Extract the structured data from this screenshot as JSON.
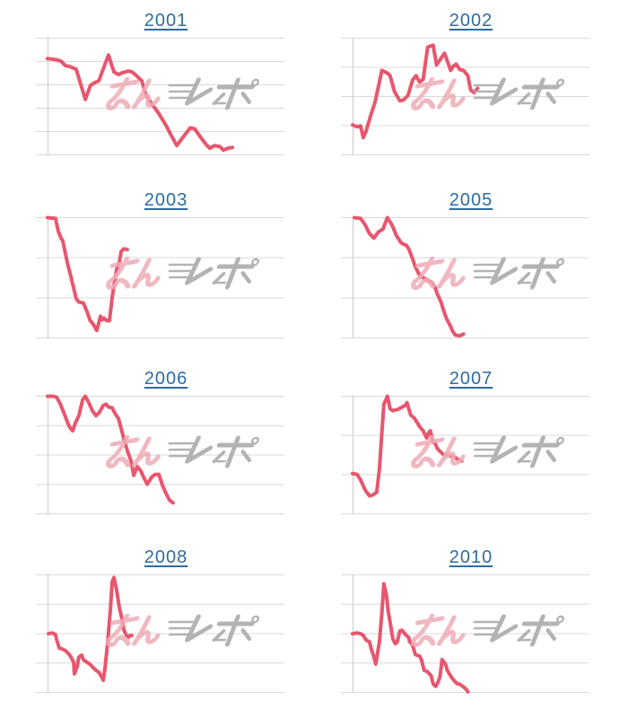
{
  "page": {
    "background": "#ffffff"
  },
  "colors": {
    "line": "#e8566e",
    "grid": "#d9d9d9",
    "axis": "#c9c9c9",
    "link": "#2d6ca2",
    "watermark_pink": "#eeacb6",
    "watermark_gray": "#ababab"
  },
  "watermark": {
    "text": "みんレポ"
  },
  "chart_data": [
    {
      "type": "line",
      "title": "2001",
      "gridline_count": 6,
      "axis_labels_visible": false,
      "value_scale": "unlabeled (normalized 0=top,1=bottom)",
      "points": [
        [
          0.047,
          0.175
        ],
        [
          0.079,
          0.183
        ],
        [
          0.101,
          0.198
        ],
        [
          0.119,
          0.236
        ],
        [
          0.137,
          0.244
        ],
        [
          0.162,
          0.267
        ],
        [
          0.199,
          0.525
        ],
        [
          0.22,
          0.404
        ],
        [
          0.238,
          0.381
        ],
        [
          0.253,
          0.366
        ],
        [
          0.292,
          0.145
        ],
        [
          0.314,
          0.289
        ],
        [
          0.332,
          0.312
        ],
        [
          0.347,
          0.297
        ],
        [
          0.372,
          0.282
        ],
        [
          0.386,
          0.289
        ],
        [
          0.404,
          0.32
        ],
        [
          0.426,
          0.366
        ],
        [
          0.444,
          0.495
        ],
        [
          0.469,
          0.571
        ],
        [
          0.495,
          0.647
        ],
        [
          0.523,
          0.746
        ],
        [
          0.542,
          0.822
        ],
        [
          0.567,
          0.921
        ],
        [
          0.588,
          0.86
        ],
        [
          0.621,
          0.769
        ],
        [
          0.639,
          0.777
        ],
        [
          0.661,
          0.845
        ],
        [
          0.686,
          0.914
        ],
        [
          0.7,
          0.944
        ],
        [
          0.718,
          0.921
        ],
        [
          0.74,
          0.929
        ],
        [
          0.754,
          0.959
        ],
        [
          0.773,
          0.944
        ],
        [
          0.791,
          0.937
        ]
      ]
    },
    {
      "type": "line",
      "title": "2002",
      "gridline_count": 5,
      "axis_labels_visible": false,
      "value_scale": "unlabeled (normalized 0=top,1=bottom)",
      "points": [
        [
          0.047,
          0.744
        ],
        [
          0.065,
          0.76
        ],
        [
          0.079,
          0.752
        ],
        [
          0.09,
          0.852
        ],
        [
          0.101,
          0.798
        ],
        [
          0.119,
          0.668
        ],
        [
          0.137,
          0.553
        ],
        [
          0.165,
          0.276
        ],
        [
          0.187,
          0.299
        ],
        [
          0.198,
          0.322
        ],
        [
          0.216,
          0.46
        ],
        [
          0.237,
          0.537
        ],
        [
          0.252,
          0.53
        ],
        [
          0.27,
          0.491
        ],
        [
          0.288,
          0.361
        ],
        [
          0.302,
          0.322
        ],
        [
          0.317,
          0.376
        ],
        [
          0.331,
          0.353
        ],
        [
          0.349,
          0.077
        ],
        [
          0.371,
          0.061
        ],
        [
          0.385,
          0.23
        ],
        [
          0.417,
          0.13
        ],
        [
          0.442,
          0.276
        ],
        [
          0.453,
          0.238
        ],
        [
          0.464,
          0.223
        ],
        [
          0.478,
          0.269
        ],
        [
          0.493,
          0.276
        ],
        [
          0.511,
          0.322
        ],
        [
          0.522,
          0.445
        ],
        [
          0.536,
          0.468
        ],
        [
          0.55,
          0.43
        ]
      ]
    },
    {
      "type": "line",
      "title": "2003",
      "gridline_count": 4,
      "axis_labels_visible": false,
      "value_scale": "unlabeled (normalized 0=top,1=bottom)",
      "points": [
        [
          0.047,
          0.0
        ],
        [
          0.079,
          0.007
        ],
        [
          0.09,
          0.111
        ],
        [
          0.101,
          0.17
        ],
        [
          0.108,
          0.192
        ],
        [
          0.126,
          0.37
        ],
        [
          0.144,
          0.517
        ],
        [
          0.162,
          0.673
        ],
        [
          0.173,
          0.702
        ],
        [
          0.191,
          0.71
        ],
        [
          0.206,
          0.783
        ],
        [
          0.217,
          0.85
        ],
        [
          0.231,
          0.887
        ],
        [
          0.245,
          0.939
        ],
        [
          0.26,
          0.82
        ],
        [
          0.267,
          0.85
        ],
        [
          0.274,
          0.835
        ],
        [
          0.285,
          0.857
        ],
        [
          0.296,
          0.857
        ],
        [
          0.307,
          0.665
        ],
        [
          0.318,
          0.517
        ],
        [
          0.325,
          0.429
        ],
        [
          0.336,
          0.37
        ],
        [
          0.343,
          0.281
        ],
        [
          0.354,
          0.259
        ],
        [
          0.368,
          0.266
        ]
      ]
    },
    {
      "type": "line",
      "title": "2005",
      "gridline_count": 4,
      "axis_labels_visible": false,
      "value_scale": "unlabeled (normalized 0=top,1=bottom)",
      "points": [
        [
          0.054,
          0.0
        ],
        [
          0.079,
          0.007
        ],
        [
          0.097,
          0.059
        ],
        [
          0.115,
          0.133
        ],
        [
          0.133,
          0.17
        ],
        [
          0.151,
          0.118
        ],
        [
          0.169,
          0.096
        ],
        [
          0.187,
          0.0
        ],
        [
          0.205,
          0.059
        ],
        [
          0.223,
          0.148
        ],
        [
          0.241,
          0.207
        ],
        [
          0.252,
          0.222
        ],
        [
          0.263,
          0.229
        ],
        [
          0.273,
          0.259
        ],
        [
          0.288,
          0.34
        ],
        [
          0.299,
          0.407
        ],
        [
          0.313,
          0.466
        ],
        [
          0.324,
          0.495
        ],
        [
          0.335,
          0.503
        ],
        [
          0.349,
          0.517
        ],
        [
          0.367,
          0.54
        ],
        [
          0.378,
          0.577
        ],
        [
          0.388,
          0.636
        ],
        [
          0.403,
          0.702
        ],
        [
          0.414,
          0.776
        ],
        [
          0.424,
          0.835
        ],
        [
          0.439,
          0.894
        ],
        [
          0.45,
          0.946
        ],
        [
          0.46,
          0.976
        ],
        [
          0.478,
          0.983
        ],
        [
          0.493,
          0.968
        ]
      ]
    },
    {
      "type": "line",
      "title": "2006",
      "gridline_count": 5,
      "axis_labels_visible": false,
      "value_scale": "unlabeled (normalized 0=top,1=bottom)",
      "points": [
        [
          0.047,
          0.0
        ],
        [
          0.069,
          0.0
        ],
        [
          0.083,
          0.008
        ],
        [
          0.097,
          0.06
        ],
        [
          0.116,
          0.159
        ],
        [
          0.134,
          0.257
        ],
        [
          0.148,
          0.295
        ],
        [
          0.159,
          0.227
        ],
        [
          0.173,
          0.166
        ],
        [
          0.188,
          0.03
        ],
        [
          0.199,
          0.0
        ],
        [
          0.213,
          0.055
        ],
        [
          0.227,
          0.121
        ],
        [
          0.242,
          0.166
        ],
        [
          0.256,
          0.136
        ],
        [
          0.271,
          0.079
        ],
        [
          0.282,
          0.068
        ],
        [
          0.292,
          0.091
        ],
        [
          0.307,
          0.098
        ],
        [
          0.318,
          0.144
        ],
        [
          0.332,
          0.189
        ],
        [
          0.343,
          0.272
        ],
        [
          0.354,
          0.363
        ],
        [
          0.368,
          0.461
        ],
        [
          0.383,
          0.552
        ],
        [
          0.394,
          0.673
        ],
        [
          0.408,
          0.597
        ],
        [
          0.422,
          0.635
        ],
        [
          0.437,
          0.703
        ],
        [
          0.448,
          0.748
        ],
        [
          0.466,
          0.688
        ],
        [
          0.48,
          0.665
        ],
        [
          0.495,
          0.665
        ],
        [
          0.509,
          0.756
        ],
        [
          0.523,
          0.824
        ],
        [
          0.538,
          0.884
        ],
        [
          0.552,
          0.907
        ]
      ]
    },
    {
      "type": "line",
      "title": "2007",
      "gridline_count": 4,
      "axis_labels_visible": false,
      "value_scale": "unlabeled (normalized 0=top,1=bottom)",
      "points": [
        [
          0.047,
          0.658
        ],
        [
          0.065,
          0.665
        ],
        [
          0.079,
          0.711
        ],
        [
          0.09,
          0.763
        ],
        [
          0.101,
          0.809
        ],
        [
          0.115,
          0.847
        ],
        [
          0.129,
          0.839
        ],
        [
          0.144,
          0.816
        ],
        [
          0.155,
          0.62
        ],
        [
          0.162,
          0.393
        ],
        [
          0.173,
          0.068
        ],
        [
          0.187,
          0.0
        ],
        [
          0.198,
          0.108
        ],
        [
          0.209,
          0.123
        ],
        [
          0.223,
          0.115
        ],
        [
          0.234,
          0.108
        ],
        [
          0.245,
          0.093
        ],
        [
          0.259,
          0.078
        ],
        [
          0.266,
          0.055
        ],
        [
          0.281,
          0.161
        ],
        [
          0.295,
          0.184
        ],
        [
          0.306,
          0.221
        ],
        [
          0.317,
          0.259
        ],
        [
          0.331,
          0.295
        ],
        [
          0.345,
          0.355
        ],
        [
          0.353,
          0.31
        ],
        [
          0.36,
          0.295
        ],
        [
          0.371,
          0.393
        ],
        [
          0.378,
          0.393
        ],
        [
          0.388,
          0.446
        ],
        [
          0.403,
          0.476
        ],
        [
          0.414,
          0.499
        ],
        [
          0.424,
          0.499
        ],
        [
          0.439,
          0.506
        ],
        [
          0.45,
          0.514
        ],
        [
          0.46,
          0.521
        ],
        [
          0.475,
          0.544
        ],
        [
          0.486,
          0.551
        ]
      ]
    },
    {
      "type": "line",
      "title": "2008",
      "gridline_count": 5,
      "axis_labels_visible": false,
      "value_scale": "unlabeled (normalized 0=top,1=bottom)",
      "points": [
        [
          0.051,
          0.501
        ],
        [
          0.065,
          0.494
        ],
        [
          0.079,
          0.509
        ],
        [
          0.083,
          0.547
        ],
        [
          0.094,
          0.623
        ],
        [
          0.105,
          0.63
        ],
        [
          0.119,
          0.645
        ],
        [
          0.134,
          0.676
        ],
        [
          0.141,
          0.699
        ],
        [
          0.152,
          0.744
        ],
        [
          0.155,
          0.843
        ],
        [
          0.166,
          0.782
        ],
        [
          0.173,
          0.699
        ],
        [
          0.184,
          0.683
        ],
        [
          0.191,
          0.721
        ],
        [
          0.206,
          0.744
        ],
        [
          0.217,
          0.759
        ],
        [
          0.227,
          0.782
        ],
        [
          0.242,
          0.812
        ],
        [
          0.253,
          0.828
        ],
        [
          0.264,
          0.866
        ],
        [
          0.271,
          0.896
        ],
        [
          0.278,
          0.797
        ],
        [
          0.289,
          0.57
        ],
        [
          0.3,
          0.289
        ],
        [
          0.307,
          0.061
        ],
        [
          0.314,
          0.023
        ],
        [
          0.325,
          0.129
        ],
        [
          0.336,
          0.281
        ],
        [
          0.347,
          0.38
        ],
        [
          0.354,
          0.471
        ],
        [
          0.365,
          0.516
        ],
        [
          0.372,
          0.532
        ],
        [
          0.379,
          0.516
        ],
        [
          0.386,
          0.516
        ]
      ]
    },
    {
      "type": "line",
      "title": "2010",
      "gridline_count": 5,
      "axis_labels_visible": false,
      "value_scale": "unlabeled (normalized 0=top,1=bottom)",
      "points": [
        [
          0.047,
          0.501
        ],
        [
          0.065,
          0.494
        ],
        [
          0.079,
          0.501
        ],
        [
          0.09,
          0.516
        ],
        [
          0.101,
          0.554
        ],
        [
          0.115,
          0.57
        ],
        [
          0.122,
          0.63
        ],
        [
          0.133,
          0.699
        ],
        [
          0.14,
          0.759
        ],
        [
          0.155,
          0.57
        ],
        [
          0.165,
          0.319
        ],
        [
          0.173,
          0.076
        ],
        [
          0.183,
          0.175
        ],
        [
          0.191,
          0.319
        ],
        [
          0.201,
          0.441
        ],
        [
          0.209,
          0.547
        ],
        [
          0.219,
          0.585
        ],
        [
          0.227,
          0.57
        ],
        [
          0.237,
          0.479
        ],
        [
          0.245,
          0.471
        ],
        [
          0.255,
          0.494
        ],
        [
          0.263,
          0.516
        ],
        [
          0.273,
          0.532
        ],
        [
          0.277,
          0.57
        ],
        [
          0.288,
          0.593
        ],
        [
          0.299,
          0.676
        ],
        [
          0.306,
          0.684
        ],
        [
          0.317,
          0.691
        ],
        [
          0.324,
          0.721
        ],
        [
          0.335,
          0.813
        ],
        [
          0.345,
          0.82
        ],
        [
          0.353,
          0.835
        ],
        [
          0.363,
          0.858
        ],
        [
          0.371,
          0.926
        ],
        [
          0.381,
          0.949
        ],
        [
          0.388,
          0.926
        ],
        [
          0.399,
          0.866
        ],
        [
          0.407,
          0.721
        ],
        [
          0.421,
          0.759
        ],
        [
          0.428,
          0.813
        ],
        [
          0.439,
          0.851
        ],
        [
          0.446,
          0.874
        ],
        [
          0.457,
          0.904
        ],
        [
          0.468,
          0.926
        ],
        [
          0.478,
          0.93
        ],
        [
          0.486,
          0.942
        ],
        [
          0.496,
          0.957
        ],
        [
          0.507,
          0.98
        ],
        [
          0.511,
          0.995
        ]
      ]
    }
  ]
}
